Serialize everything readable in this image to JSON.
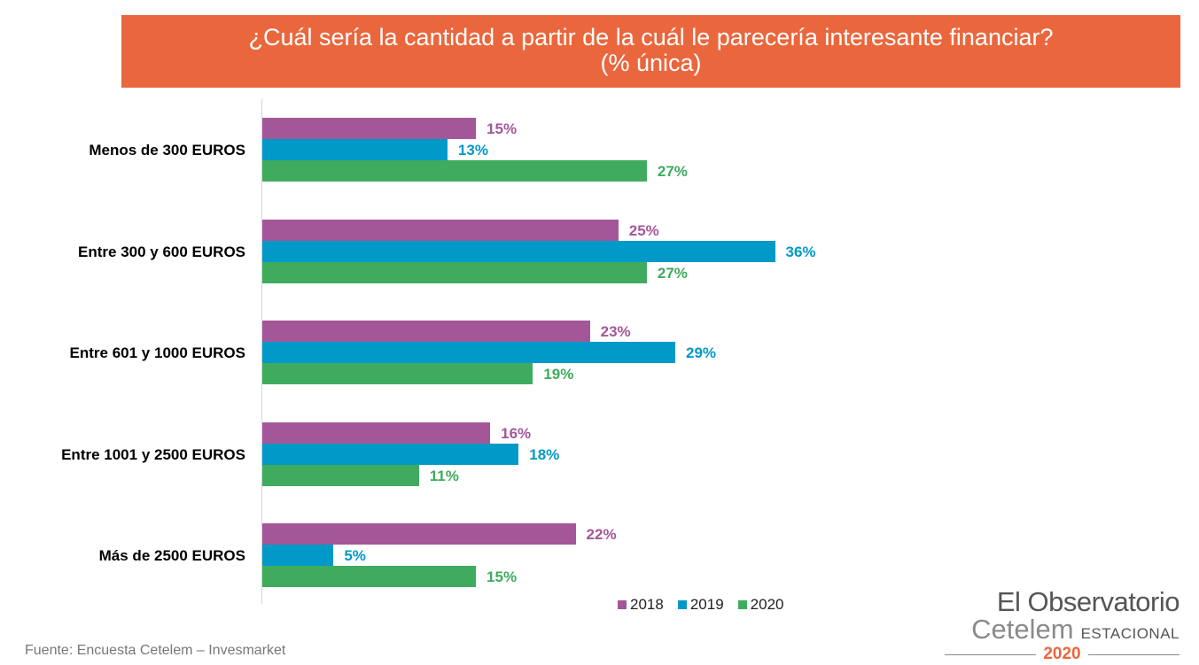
{
  "title_line1": "¿Cuál sería la cantidad a partir de la cuál le parecería interesante financiar?",
  "title_line2": "(% única)",
  "source": "Fuente: Encuesta Cetelem – Invesmarket",
  "logo": {
    "line1": "El Observatorio",
    "brand": "Cetelem",
    "edition": "ESTACIONAL",
    "year": "2020"
  },
  "colors": {
    "banner": "#ea673d",
    "s2018": "#a45798",
    "s2019": "#0099c8",
    "s2020": "#3fab5e"
  },
  "chart_data": {
    "type": "bar",
    "orientation": "horizontal",
    "title": "¿Cuál sería la cantidad a partir de la cuál le parecería interesante financiar? (% única)",
    "categories": [
      "Menos de 300 EUROS",
      "Entre 300 y 600 EUROS",
      "Entre 601 y 1000 EUROS",
      "Entre 1001 y 2500 EUROS",
      "Más de 2500 EUROS"
    ],
    "series": [
      {
        "name": "2018",
        "color": "#a45798",
        "values": [
          15,
          25,
          23,
          16,
          22
        ],
        "labels": [
          "15%",
          "25%",
          "23%",
          "16%",
          "22%"
        ]
      },
      {
        "name": "2019",
        "color": "#0099c8",
        "values": [
          13,
          36,
          29,
          18,
          5
        ],
        "labels": [
          "13%",
          "36%",
          "29%",
          "18%",
          "5%"
        ]
      },
      {
        "name": "2020",
        "color": "#3fab5e",
        "values": [
          27,
          27,
          19,
          11,
          15
        ],
        "labels": [
          "27%",
          "27%",
          "19%",
          "11%",
          "15%"
        ]
      }
    ],
    "legend": [
      "2018",
      "2019",
      "2020"
    ],
    "legend_position": "bottom",
    "xlim": [
      0,
      40
    ],
    "grid": false
  }
}
